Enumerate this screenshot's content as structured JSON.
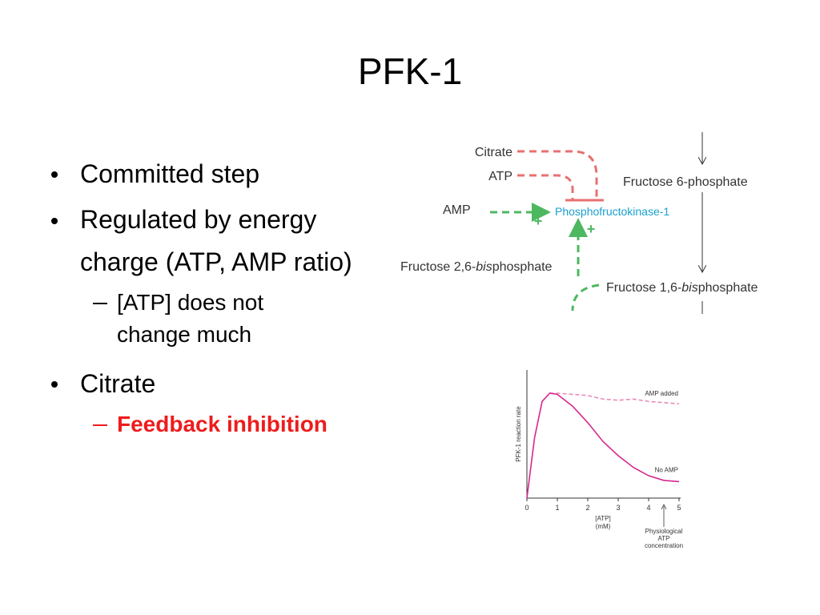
{
  "slide": {
    "title": "PFK-1",
    "bullets": [
      {
        "level": 1,
        "text": "Committed step"
      },
      {
        "level": 1,
        "text": "Regulated by energy charge (ATP, AMP ratio)"
      },
      {
        "level": 2,
        "text": "[ATP] does not change much"
      },
      {
        "level": 1,
        "text": "Citrate"
      },
      {
        "level": 2,
        "text": "Feedback inhibition",
        "color": "#ee1c1c",
        "bold": true
      }
    ]
  },
  "diagram": {
    "citrate": "Citrate",
    "atp": "ATP",
    "amp": "AMP",
    "enzyme": "Phosphofructokinase-1",
    "substrate": "Fructose 6-phosphate",
    "activator": [
      "Fructose 2,6-",
      "bis",
      "phosphate"
    ],
    "product": [
      "Fructose 1,6-",
      "bis",
      "phosphate"
    ],
    "plus": [
      "+",
      "+"
    ]
  },
  "chart_data": {
    "type": "line",
    "y_label": "PFK-1 reaction rate",
    "x_label": [
      "[ATP]",
      "(mM)"
    ],
    "annotation": [
      "Physiological",
      "ATP",
      "concentration"
    ],
    "x": [
      0,
      0.25,
      0.5,
      0.75,
      1,
      1.5,
      2,
      2.5,
      3,
      3.5,
      4,
      4.5,
      5
    ],
    "xlim": [
      0,
      5
    ],
    "xticks": [
      0,
      1,
      2,
      3,
      4,
      5
    ],
    "ylim": [
      0,
      1
    ],
    "series": [
      {
        "name": "AMP added",
        "color": "#e88cb8",
        "dashed": true,
        "values": [
          null,
          null,
          null,
          0.89,
          0.89,
          0.88,
          0.87,
          0.84,
          0.83,
          0.84,
          0.82,
          0.81,
          0.8
        ]
      },
      {
        "name": "No AMP",
        "color": "#d6288e",
        "dashed": false,
        "values": [
          0,
          0.51,
          0.82,
          0.89,
          0.88,
          0.78,
          0.64,
          0.48,
          0.36,
          0.26,
          0.19,
          0.15,
          0.14
        ]
      }
    ]
  }
}
